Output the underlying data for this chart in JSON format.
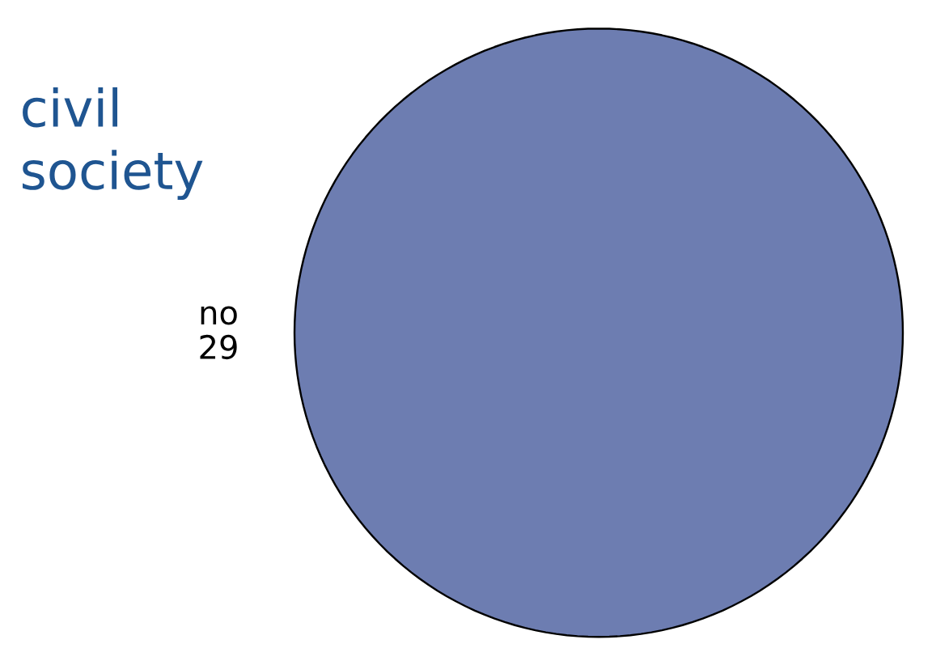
{
  "chart_data": {
    "type": "pie",
    "title": "civil society",
    "categories": [
      "no"
    ],
    "values": [
      29
    ],
    "colors": [
      "#6d7db1"
    ],
    "data_labels": true
  }
}
